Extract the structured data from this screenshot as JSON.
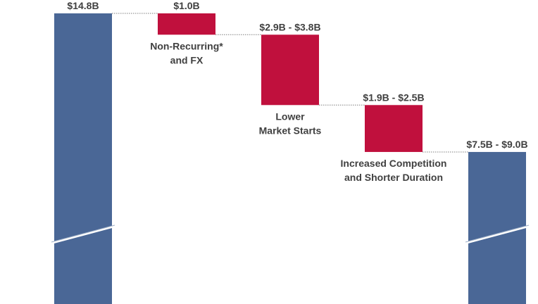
{
  "chart_data": {
    "type": "waterfall",
    "axis_break": true,
    "categories": [
      "",
      "Non-Recurring* and FX",
      "Lower Market Starts",
      "Increased Competition and Shorter Duration",
      ""
    ],
    "steps": [
      {
        "kind": "total",
        "label_lines": [],
        "value_label": "$14.8B",
        "start": 0,
        "end": 14.8
      },
      {
        "kind": "decrease",
        "label_lines": [
          "Non-Recurring*",
          "and FX"
        ],
        "value_label": "$1.0B",
        "start": 14.8,
        "end": 13.8
      },
      {
        "kind": "decrease",
        "label_lines": [
          "Lower",
          "Market Starts"
        ],
        "value_label": "$2.9B - $3.8B",
        "start": 13.8,
        "end": 10.5
      },
      {
        "kind": "decrease",
        "label_lines": [
          "Increased Competition",
          "and Shorter Duration"
        ],
        "value_label": "$1.9B - $2.5B",
        "start": 10.5,
        "end": 8.3
      },
      {
        "kind": "total",
        "label_lines": [],
        "value_label": "$7.5B - $9.0B",
        "start": 0,
        "end": 8.3
      }
    ],
    "colors": {
      "total": "#4a6796",
      "decrease": "#c0103d",
      "connector": "#7f7f7f",
      "text": "#404040"
    }
  }
}
